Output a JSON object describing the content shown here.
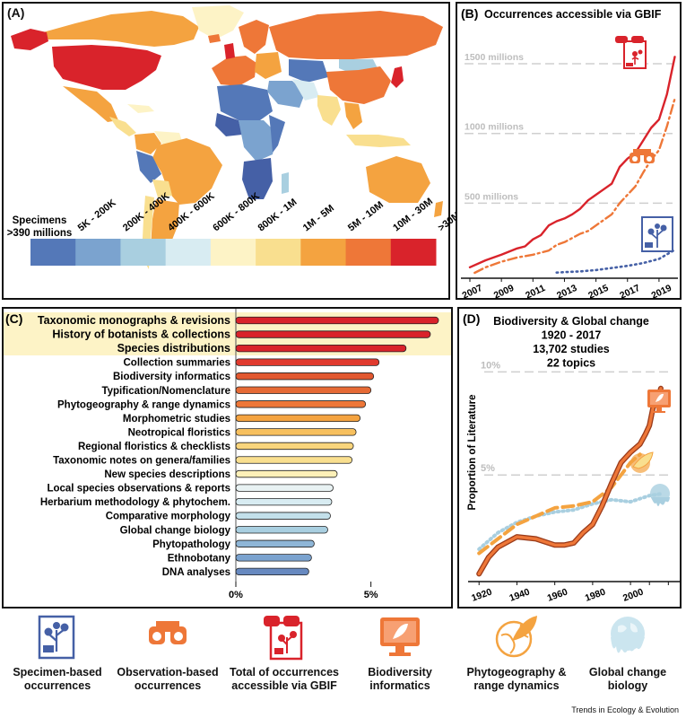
{
  "colors": {
    "red": "#d9232b",
    "orange": "#ee7738",
    "amber": "#f4a340",
    "yellow": "#f9df8f",
    "paleyellow": "#fdf3c6",
    "paleblue": "#d8ecf2",
    "lightblue": "#a9cfe0",
    "midblue": "#7ba3cf",
    "blue": "#5478b8",
    "navy": "#4560a6",
    "gbif": "#c8212c"
  },
  "chart_data": [
    {
      "id": "A",
      "type": "heatmap",
      "panel_label": "(A)",
      "subject": "World map of specimen counts per country",
      "legend_title_line1": "Specimens",
      "legend_title_line2": ">390 millions",
      "legend_bins": [
        "5K - 200K",
        "200K - 400K",
        "400K - 600K",
        "600K - 800K",
        "800K - 1M",
        "1M - 5M",
        "5M - 10M",
        "10M - 30M",
        ">30M"
      ],
      "legend_colors": [
        "#5478b8",
        "#7ba3cf",
        "#a9cfe0",
        "#d8ecf2",
        "#fdf3c6",
        "#f9df8f",
        "#f4a340",
        "#ee7738",
        "#d9232b"
      ]
    },
    {
      "id": "B",
      "type": "line",
      "panel_label": "(B)",
      "title": "Occurrences accessible via GBIF",
      "xlabel": "",
      "ylabel": "",
      "xlim": [
        2007,
        2020.2
      ],
      "ylim": [
        0,
        1700
      ],
      "x_ticks": [
        2007,
        2009,
        2011,
        2013,
        2015,
        2017,
        2019
      ],
      "y_gridlines": [
        500,
        1000,
        1500
      ],
      "y_grid_labels": [
        "500 millions",
        "1000 millions",
        "1500 millions"
      ],
      "series": [
        {
          "name": "Total of occurrences accessible via GBIF",
          "style": "solid",
          "color": "#d9232b",
          "x": [
            2007,
            2008,
            2009,
            2010,
            2010.5,
            2011,
            2011.5,
            2012,
            2012.5,
            2013,
            2013.5,
            2014,
            2014.5,
            2015,
            2015.5,
            2016,
            2016.5,
            2017,
            2017.5,
            2018,
            2018.5,
            2019,
            2019.5,
            2020
          ],
          "y": [
            40,
            90,
            130,
            175,
            190,
            240,
            270,
            340,
            370,
            390,
            420,
            460,
            520,
            560,
            600,
            640,
            760,
            820,
            860,
            950,
            1040,
            1100,
            1280,
            1550
          ]
        },
        {
          "name": "Observation-based occurrences",
          "style": "dashdot",
          "color": "#ee7738",
          "x": [
            2007.3,
            2008,
            2009,
            2010,
            2011,
            2012,
            2012.5,
            2013,
            2013.5,
            2014,
            2014.5,
            2015,
            2015.5,
            2016,
            2016.5,
            2017,
            2017.5,
            2018,
            2018.5,
            2019,
            2019.5,
            2020
          ],
          "y": [
            0,
            40,
            80,
            110,
            130,
            160,
            200,
            220,
            250,
            280,
            300,
            340,
            380,
            420,
            500,
            560,
            620,
            720,
            810,
            880,
            1050,
            1250
          ]
        },
        {
          "name": "Specimen-based occurrences",
          "style": "dotted",
          "color": "#4560a6",
          "x": [
            2012.5,
            2013,
            2014,
            2015,
            2016,
            2017,
            2018,
            2019,
            2020
          ],
          "y": [
            2,
            5,
            10,
            20,
            35,
            50,
            70,
            100,
            165
          ]
        }
      ]
    },
    {
      "id": "C",
      "type": "bar",
      "orientation": "horizontal",
      "panel_label": "(C)",
      "xlabel": "",
      "x_ticks": [
        "0%",
        "5%"
      ],
      "xlim": [
        0,
        7.8
      ],
      "categories": [
        "Taxonomic monographs & revisions",
        "History of botanists & collections",
        "Species distributions",
        "Collection summaries",
        "Biodiversity informatics",
        "Typification/Nomenclature",
        "Phytogeography & range dynamics",
        "Morphometric studies",
        "Neotropical floristics",
        "Regional floristics & checklists",
        "Taxonomic notes on genera/families",
        "New species descriptions",
        "Local species observations & reports",
        "Herbarium methodology & phytochem.",
        "Comparative morphology",
        "Global change biology",
        "Phytopathology",
        "Ethnobotany",
        "DNA analyses"
      ],
      "values": [
        7.5,
        7.2,
        6.3,
        5.3,
        5.1,
        5.0,
        4.8,
        4.6,
        4.45,
        4.35,
        4.3,
        3.75,
        3.6,
        3.55,
        3.5,
        3.4,
        2.9,
        2.8,
        2.7
      ],
      "highlighted": [
        "Taxonomic monographs & revisions",
        "History of botanists & collections",
        "Species distributions"
      ]
    },
    {
      "id": "D",
      "type": "line",
      "panel_label": "(D)",
      "title_lines": [
        "Biodiversity & Global change",
        "1920 - 2017",
        "13,702 studies",
        "22 topics"
      ],
      "ylabel": "Proportion of Literature",
      "xlim": [
        1918,
        2026
      ],
      "ylim": [
        0,
        11.5
      ],
      "x_ticks": [
        1920,
        1940,
        1960,
        1980,
        2000
      ],
      "y_gridlines": [
        5,
        10
      ],
      "y_grid_labels": [
        "5%",
        "10%"
      ],
      "series": [
        {
          "name": "Biodiversity informatics",
          "style": "solid",
          "color": "#ee7738",
          "x": [
            1920,
            1925,
            1930,
            1940,
            1950,
            1960,
            1965,
            1970,
            1975,
            1980,
            1985,
            1990,
            1995,
            2000,
            2005,
            2008,
            2010,
            2012,
            2014,
            2016
          ],
          "y": [
            0.2,
            1.0,
            1.5,
            2.0,
            1.9,
            1.6,
            1.6,
            1.7,
            2.2,
            2.6,
            3.5,
            4.6,
            5.6,
            6.1,
            6.5,
            7.0,
            7.4,
            8.3,
            8.5,
            9.2
          ]
        },
        {
          "name": "Phytogeography & range dynamics",
          "style": "dashed",
          "color": "#f4a340",
          "x": [
            1920,
            1930,
            1940,
            1950,
            1960,
            1970,
            1980,
            1990,
            2000,
            2005
          ],
          "y": [
            1.2,
            1.9,
            2.6,
            3.0,
            3.4,
            3.5,
            3.7,
            4.4,
            5.6,
            6.0
          ]
        },
        {
          "name": "Global change biology",
          "style": "dotted",
          "color": "#a9cfe0",
          "x": [
            1920,
            1930,
            1940,
            1950,
            1960,
            1970,
            1980,
            1990,
            2000,
            2010,
            2017
          ],
          "y": [
            1.4,
            2.2,
            2.7,
            3.0,
            3.2,
            3.3,
            3.6,
            3.8,
            3.7,
            4.0,
            4.1
          ]
        }
      ]
    }
  ],
  "icon_legend": [
    {
      "icon": "herbarium-sheet-icon",
      "color": "#4560a6",
      "label_lines": [
        "Specimen-based",
        "occurrences"
      ]
    },
    {
      "icon": "binoculars-icon",
      "color": "#ee7738",
      "label_lines": [
        "Observation-based",
        "occurrences"
      ]
    },
    {
      "icon": "gbif-combined-icon",
      "color": "#d9232b",
      "label_lines": [
        "Total of occurrences",
        "accessible via GBIF"
      ]
    },
    {
      "icon": "computer-leaf-icon",
      "color": "#ee7738",
      "label_lines": [
        "Biodiversity",
        "informatics"
      ]
    },
    {
      "icon": "globe-leaf-icon",
      "color": "#f4a340",
      "label_lines": [
        "Phytogeography &",
        "range dynamics"
      ]
    },
    {
      "icon": "melting-globe-icon",
      "color": "#a9cfe0",
      "label_lines": [
        "Global change",
        "biology"
      ]
    }
  ],
  "credit": "Trends in Ecology & Evolution"
}
